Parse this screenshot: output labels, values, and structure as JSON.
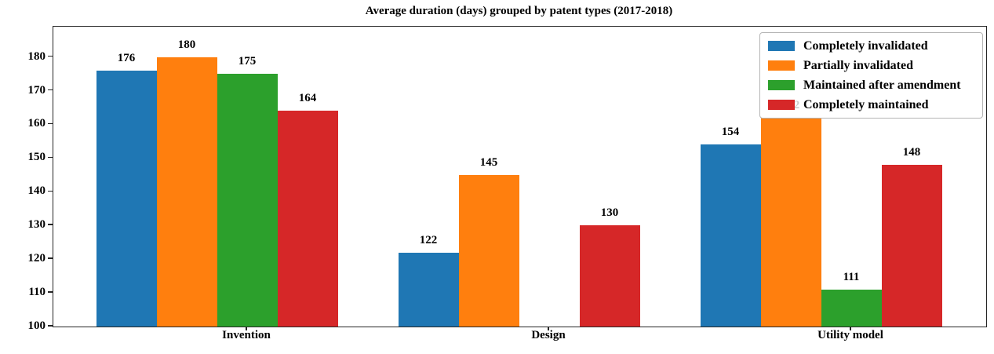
{
  "chart_data": {
    "type": "bar",
    "title": "Average duration (days) grouped by patent types (2017-2018)",
    "categories": [
      "Invention",
      "Design",
      "Utility model"
    ],
    "series": [
      {
        "name": "Completely invalidated",
        "color": "#1f77b4",
        "values": [
          176,
          122,
          154
        ]
      },
      {
        "name": "Partially invalidated",
        "color": "#ff7f0e",
        "values": [
          180,
          145,
          162
        ]
      },
      {
        "name": "Maintained after amendment",
        "color": "#2ca02c",
        "values": [
          175,
          null,
          111
        ]
      },
      {
        "name": "Completely maintained",
        "color": "#d62728",
        "values": [
          164,
          130,
          148
        ]
      }
    ],
    "xlabel": "",
    "ylabel": "",
    "ylim": [
      100,
      189
    ],
    "yticks": [
      100,
      110,
      120,
      130,
      140,
      150,
      160,
      170,
      180
    ],
    "bar_value_labels": true,
    "grid": false,
    "legend_position": "upper right",
    "note": "Maintained after amendment has no bar for Design; the 162 label sits behind the legend"
  }
}
